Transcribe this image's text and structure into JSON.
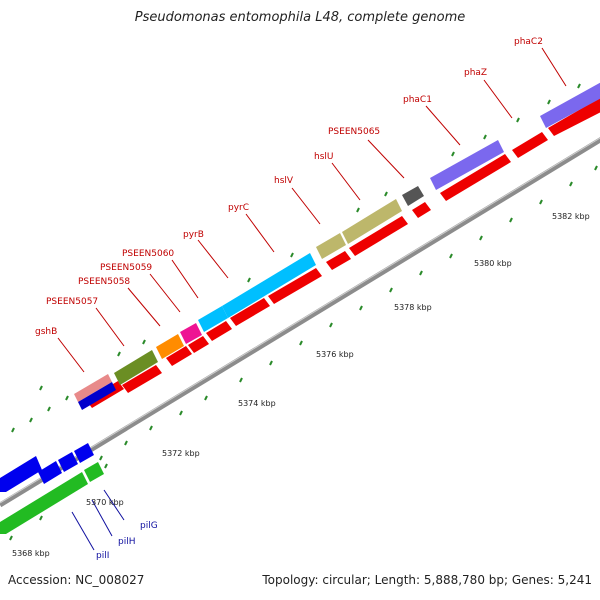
{
  "title": "Pseudomonas entomophila L48, complete genome",
  "footer": {
    "accession": "Accession: NC_008027",
    "stats": "Topology: circular; Length: 5,888,780 bp; Genes: 5,241"
  },
  "colors": {
    "backbone": "#8c8c8c",
    "cds": "#ff0000",
    "tick": "#2a8a2a",
    "label_red": "#c00000",
    "label_blue": "#1010a0"
  },
  "scale_labels": [
    "5368 kbp",
    "5370 kbp",
    "5372 kbp",
    "5374 kbp",
    "5376 kbp",
    "5378 kbp",
    "5380 kbp",
    "5382 kbp"
  ],
  "genes": [
    {
      "name": "gshB",
      "color": "#e88a8a"
    },
    {
      "name": "PSEEN5057",
      "color": "#6b8e23"
    },
    {
      "name": "PSEEN5058",
      "color": "#ff8c00"
    },
    {
      "name": "PSEEN5059",
      "color": "#ee1493"
    },
    {
      "name": "PSEEN5060",
      "color": "#00bfff"
    },
    {
      "name": "pyrB",
      "color": "#00bfff"
    },
    {
      "name": "pyrC",
      "color": "#00bfff"
    },
    {
      "name": "hslV",
      "color": "#bdb76b"
    },
    {
      "name": "hslU",
      "color": "#bdb76b"
    },
    {
      "name": "PSEEN5065",
      "color": "#555555"
    },
    {
      "name": "phaC1",
      "color": "#7b68ee"
    },
    {
      "name": "phaZ",
      "color": "#7b68ee"
    },
    {
      "name": "phaC2",
      "color": "#7b68ee"
    }
  ],
  "reverse_genes": [
    {
      "name": "pilG",
      "color": "#2e2ee8"
    },
    {
      "name": "pilH",
      "color": "#2e2ee8"
    },
    {
      "name": "pilI",
      "color": "#2e2ee8"
    }
  ]
}
